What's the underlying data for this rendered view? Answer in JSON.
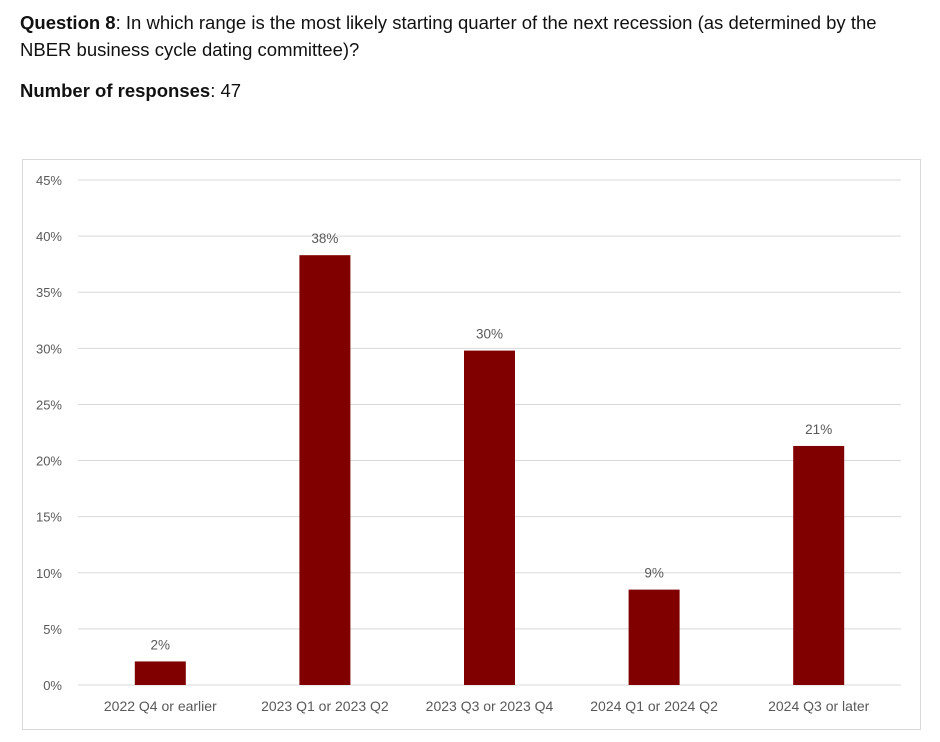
{
  "question": {
    "label": "Question 8",
    "text": ": In which range is the most likely starting quarter of the next recession (as determined by the NBER business cycle dating committee)?"
  },
  "responses": {
    "label": "Number of responses",
    "value": ": 47"
  },
  "colors": {
    "bar": "#800000",
    "grid": "#d9d9d9",
    "tick_text": "#595959"
  },
  "chart_data": {
    "type": "bar",
    "categories": [
      "2022 Q4 or earlier",
      "2023 Q1 or 2023 Q2",
      "2023 Q3 or 2023 Q4",
      "2024 Q1 or 2024 Q2",
      "2024 Q3 or later"
    ],
    "values": [
      2.1,
      38.3,
      29.8,
      8.5,
      21.3
    ],
    "data_labels": [
      "2%",
      "38%",
      "30%",
      "9%",
      "21%"
    ],
    "yticks": [
      "0%",
      "5%",
      "10%",
      "15%",
      "20%",
      "25%",
      "30%",
      "35%",
      "40%",
      "45%"
    ],
    "ylim": [
      0,
      45
    ],
    "grid": true,
    "legend": "none",
    "title": "",
    "xlabel": "",
    "ylabel": ""
  }
}
